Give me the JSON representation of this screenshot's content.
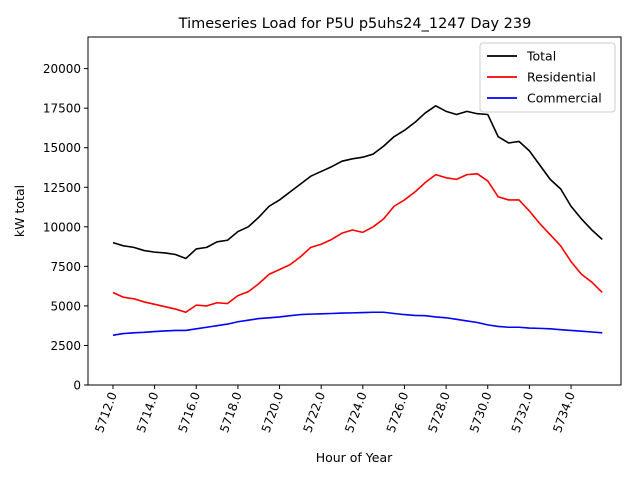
{
  "chart_data": {
    "type": "line",
    "title": "Timeseries Load for P5U p5uhs24_1247  Day 239",
    "xlabel": "Hour of Year",
    "ylabel": "kW total",
    "xlim": [
      5710.8,
      5736.4
    ],
    "ylim": [
      0,
      22000
    ],
    "xticks": [
      5712,
      5714,
      5716,
      5718,
      5720,
      5722,
      5724,
      5726,
      5728,
      5730,
      5732,
      5734
    ],
    "xtick_labels": [
      "5712.0",
      "5714.0",
      "5716.0",
      "5718.0",
      "5720.0",
      "5722.0",
      "5724.0",
      "5726.0",
      "5728.0",
      "5730.0",
      "5732.0",
      "5734.0"
    ],
    "yticks": [
      0,
      2500,
      5000,
      7500,
      10000,
      12500,
      15000,
      17500,
      20000
    ],
    "ytick_labels": [
      "0",
      "2500",
      "5000",
      "7500",
      "10000",
      "12500",
      "15000",
      "17500",
      "20000"
    ],
    "legend_position": "top-right",
    "grid": false,
    "series": [
      {
        "name": "Total",
        "color": "#000000",
        "x": [
          5712.0,
          5712.5,
          5713.0,
          5713.5,
          5714.0,
          5714.5,
          5715.0,
          5715.5,
          5716.0,
          5716.5,
          5717.0,
          5717.5,
          5718.0,
          5718.5,
          5719.0,
          5719.5,
          5720.0,
          5720.5,
          5721.0,
          5721.5,
          5722.0,
          5722.5,
          5723.0,
          5723.5,
          5724.0,
          5724.5,
          5725.0,
          5725.5,
          5726.0,
          5726.5,
          5727.0,
          5727.5,
          5728.0,
          5728.5,
          5729.0,
          5729.5,
          5730.0,
          5730.5,
          5731.0,
          5731.5,
          5732.0,
          5732.5,
          5733.0,
          5733.5,
          5734.0,
          5734.5,
          5735.0,
          5735.5
        ],
        "values": [
          9000,
          8800,
          8700,
          8500,
          8400,
          8350,
          8250,
          8000,
          8600,
          8700,
          9050,
          9150,
          9700,
          10000,
          10600,
          11300,
          11700,
          12200,
          12700,
          13200,
          13500,
          13800,
          14150,
          14300,
          14400,
          14600,
          15100,
          15700,
          16100,
          16600,
          17200,
          17650,
          17300,
          17100,
          17300,
          17150,
          17100,
          15700,
          15300,
          15400,
          14800,
          13900,
          13000,
          12400,
          11300,
          10500,
          9800,
          9200
        ]
      },
      {
        "name": "Residential",
        "color": "#ff0000",
        "x": [
          5712.0,
          5712.5,
          5713.0,
          5713.5,
          5714.0,
          5714.5,
          5715.0,
          5715.5,
          5716.0,
          5716.5,
          5717.0,
          5717.5,
          5718.0,
          5718.5,
          5719.0,
          5719.5,
          5720.0,
          5720.5,
          5721.0,
          5721.5,
          5722.0,
          5722.5,
          5723.0,
          5723.5,
          5724.0,
          5724.5,
          5725.0,
          5725.5,
          5726.0,
          5726.5,
          5727.0,
          5727.5,
          5728.0,
          5728.5,
          5729.0,
          5729.5,
          5730.0,
          5730.5,
          5731.0,
          5731.5,
          5732.0,
          5732.5,
          5733.0,
          5733.5,
          5734.0,
          5734.5,
          5735.0,
          5735.5
        ],
        "values": [
          5850,
          5550,
          5450,
          5250,
          5100,
          4950,
          4800,
          4600,
          5050,
          5000,
          5200,
          5150,
          5650,
          5900,
          6400,
          7000,
          7300,
          7600,
          8100,
          8700,
          8900,
          9200,
          9600,
          9800,
          9650,
          10000,
          10500,
          11300,
          11700,
          12200,
          12800,
          13300,
          13100,
          13000,
          13300,
          13350,
          12900,
          11900,
          11700,
          11700,
          11000,
          10200,
          9500,
          8800,
          7800,
          7000,
          6500,
          5850
        ]
      },
      {
        "name": "Commercial",
        "color": "#0000ff",
        "x": [
          5712.0,
          5712.5,
          5713.0,
          5713.5,
          5714.0,
          5714.5,
          5715.0,
          5715.5,
          5716.0,
          5716.5,
          5717.0,
          5717.5,
          5718.0,
          5718.5,
          5719.0,
          5719.5,
          5720.0,
          5720.5,
          5721.0,
          5721.5,
          5722.0,
          5722.5,
          5723.0,
          5723.5,
          5724.0,
          5724.5,
          5725.0,
          5725.5,
          5726.0,
          5726.5,
          5727.0,
          5727.5,
          5728.0,
          5728.5,
          5729.0,
          5729.5,
          5730.0,
          5730.5,
          5731.0,
          5731.5,
          5732.0,
          5732.5,
          5733.0,
          5733.5,
          5734.0,
          5734.5,
          5735.0,
          5735.5
        ],
        "values": [
          3150,
          3250,
          3300,
          3330,
          3380,
          3420,
          3450,
          3450,
          3550,
          3650,
          3750,
          3850,
          4000,
          4100,
          4200,
          4250,
          4300,
          4380,
          4450,
          4480,
          4500,
          4520,
          4550,
          4560,
          4580,
          4600,
          4600,
          4520,
          4450,
          4400,
          4380,
          4300,
          4250,
          4150,
          4050,
          3950,
          3800,
          3700,
          3650,
          3650,
          3600,
          3580,
          3550,
          3500,
          3450,
          3400,
          3350,
          3300
        ]
      }
    ]
  }
}
